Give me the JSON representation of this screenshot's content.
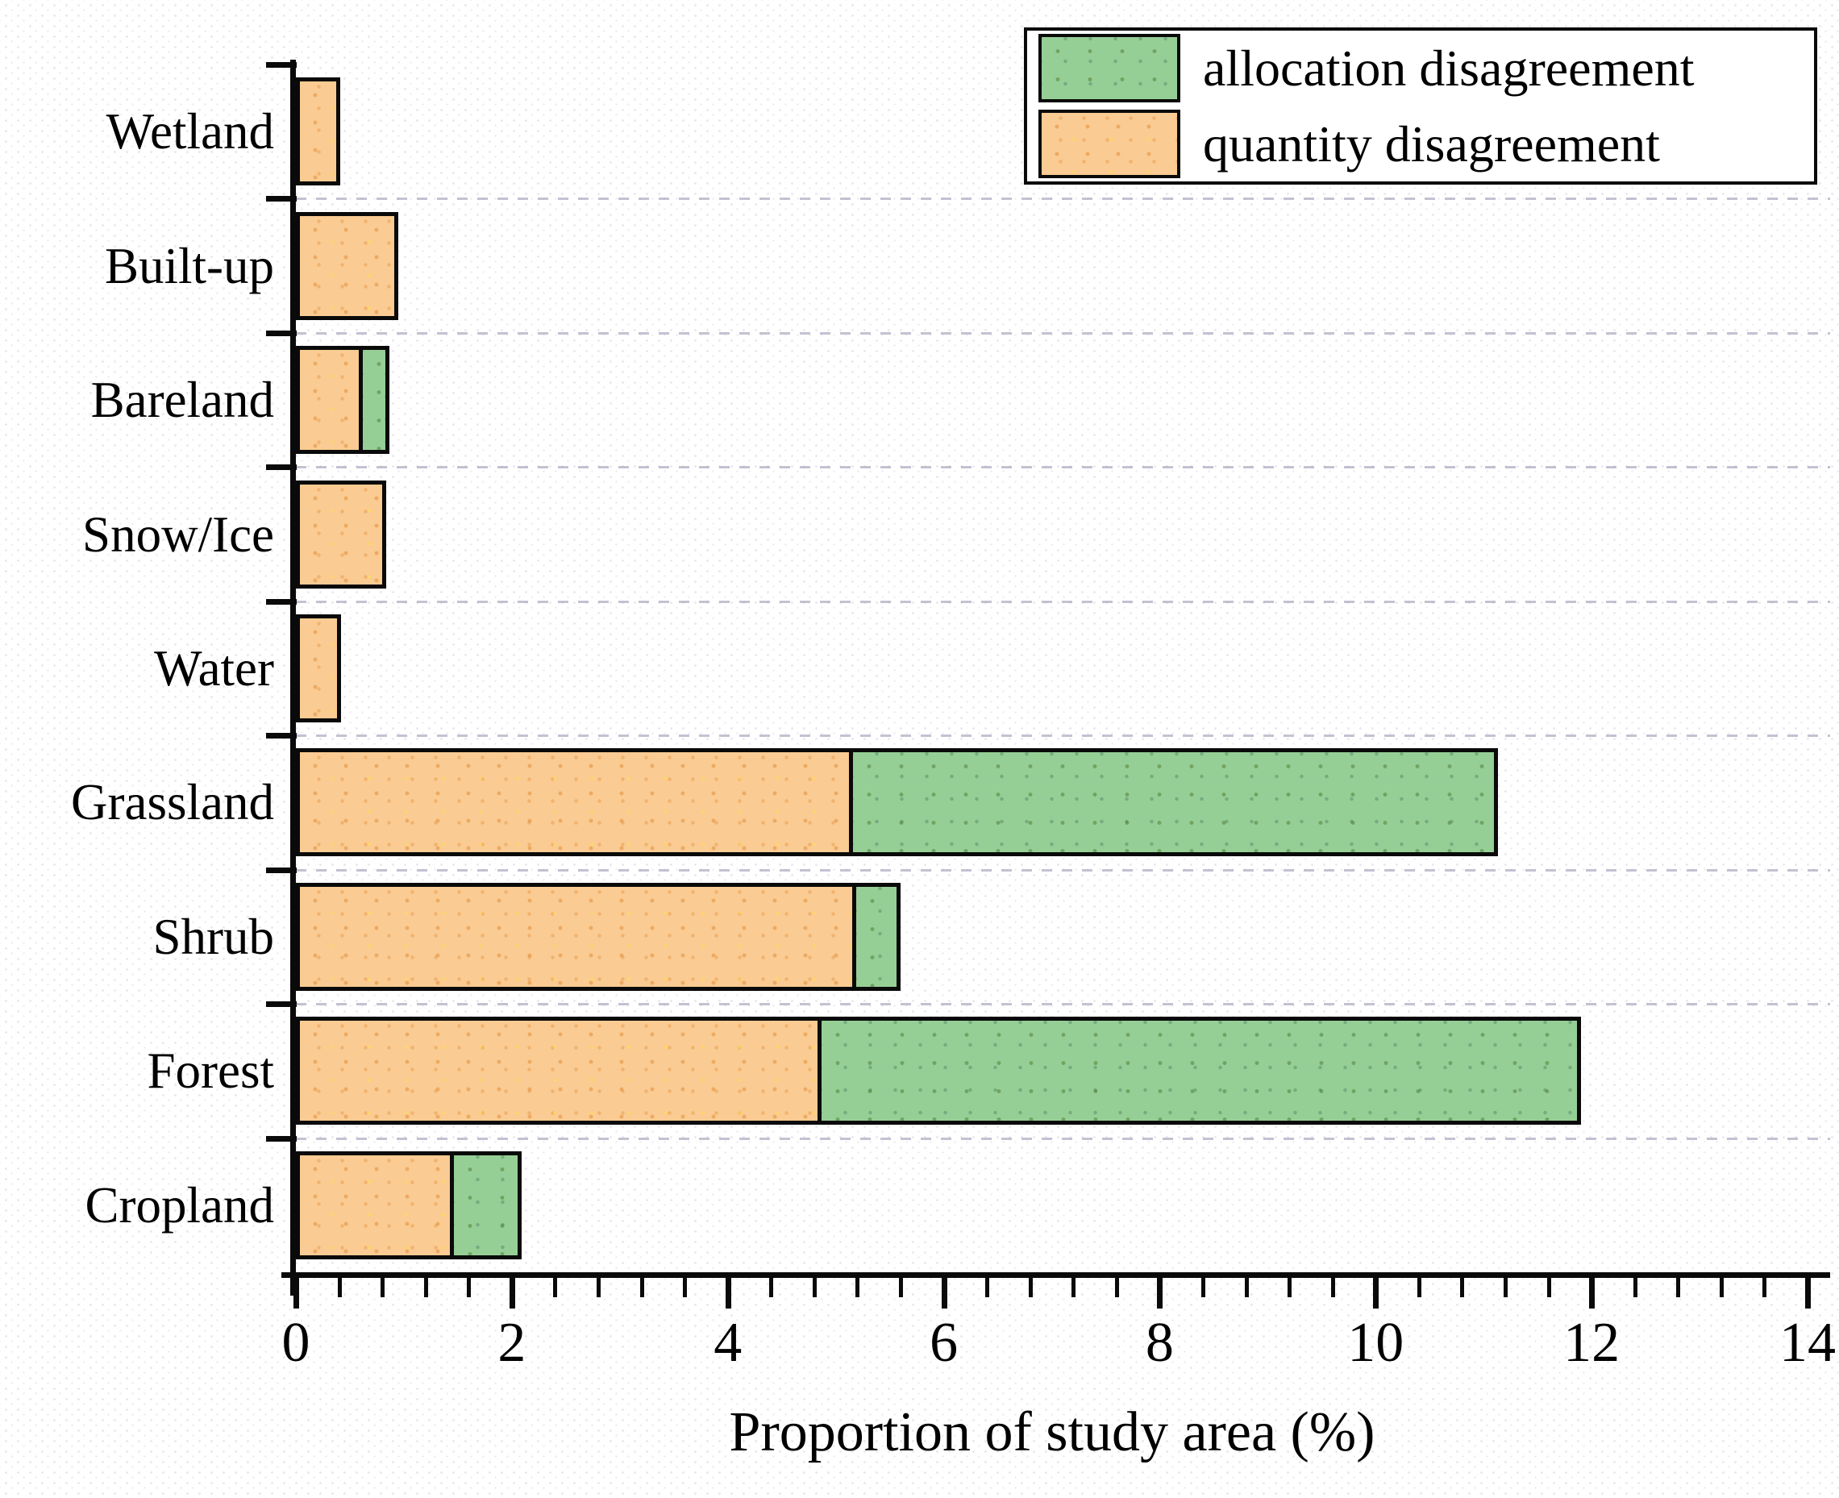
{
  "chart_data": {
    "type": "bar",
    "orientation": "horizontal",
    "stacked": true,
    "title": "",
    "xlabel": "Proportion of study area (%)",
    "ylabel": "",
    "xlim": [
      0,
      14
    ],
    "x_major_ticks": [
      "0",
      "2",
      "4",
      "6",
      "8",
      "10",
      "12",
      "14"
    ],
    "x_major_step": 2,
    "x_minor_step": 0.4,
    "grid": "dashed horizontal lines at category boundaries",
    "legend_position": "top-right",
    "categories": [
      "Wetland",
      "Built-up",
      "Bareland",
      "Snow/Ice",
      "Water",
      "Grassland",
      "Shrub",
      "Forest",
      "Cropland"
    ],
    "series": [
      {
        "name": "quantity disagreement",
        "color": "#FACB92",
        "values": [
          0.41,
          0.95,
          0.62,
          0.84,
          0.42,
          5.16,
          5.19,
          4.87,
          1.46
        ]
      },
      {
        "name": "allocation disagreement",
        "color": "#96CF96",
        "values": [
          0,
          0,
          0.25,
          0,
          0,
          5.97,
          0.41,
          7.03,
          0.63
        ]
      }
    ],
    "legend": [
      {
        "label": "allocation disagreement",
        "color": "#96CF96"
      },
      {
        "label": "quantity disagreement",
        "color": "#FACB92"
      }
    ]
  },
  "colors": {
    "bar_border": "#0a0a0a",
    "axis": "#0a0a0a",
    "gridline": "#aeaec2",
    "background": "#ffffff"
  }
}
